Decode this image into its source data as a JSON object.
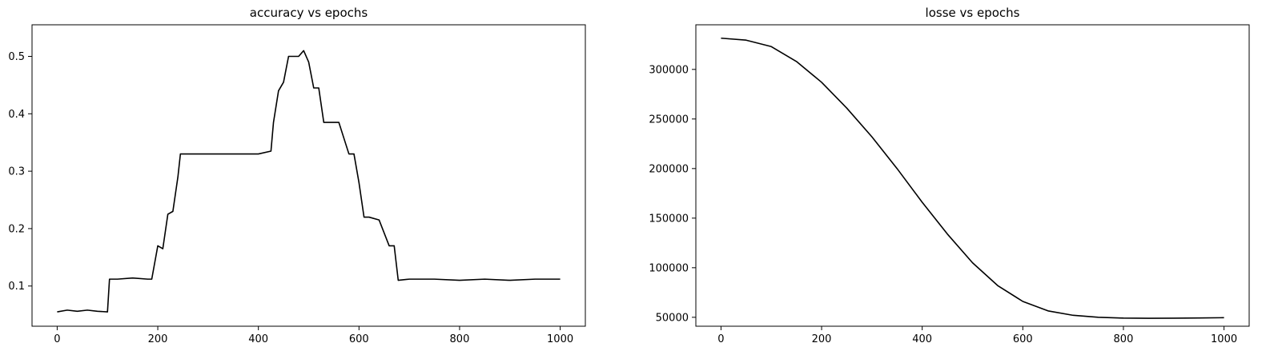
{
  "chart_data": [
    {
      "type": "line",
      "title": "accuracy vs epochs",
      "xlabel": "",
      "ylabel": "",
      "xlim": [
        -50,
        1050
      ],
      "ylim": [
        0.03,
        0.555
      ],
      "xticks": [
        0,
        200,
        400,
        600,
        800,
        1000
      ],
      "yticks": [
        0.1,
        0.2,
        0.3,
        0.4,
        0.5
      ],
      "grid": false,
      "line_color": "#000000",
      "series": [
        {
          "x": [
            0,
            20,
            40,
            60,
            80,
            100,
            104,
            120,
            150,
            180,
            188,
            200,
            210,
            220,
            230,
            240,
            245,
            260,
            300,
            350,
            400,
            425,
            430,
            440,
            450,
            460,
            480,
            490,
            500,
            510,
            520,
            530,
            540,
            560,
            580,
            590,
            600,
            610,
            620,
            640,
            660,
            670,
            678,
            700,
            750,
            800,
            850,
            900,
            950,
            1000
          ],
          "y": [
            0.055,
            0.058,
            0.056,
            0.058,
            0.056,
            0.055,
            0.112,
            0.112,
            0.114,
            0.112,
            0.112,
            0.17,
            0.165,
            0.225,
            0.23,
            0.29,
            0.33,
            0.33,
            0.33,
            0.33,
            0.33,
            0.335,
            0.385,
            0.44,
            0.455,
            0.5,
            0.5,
            0.51,
            0.49,
            0.445,
            0.445,
            0.385,
            0.385,
            0.385,
            0.33,
            0.33,
            0.28,
            0.22,
            0.22,
            0.215,
            0.17,
            0.17,
            0.11,
            0.112,
            0.112,
            0.11,
            0.112,
            0.11,
            0.112,
            0.112
          ]
        }
      ]
    },
    {
      "type": "line",
      "title": "losse vs epochs",
      "xlabel": "",
      "ylabel": "",
      "xlim": [
        -50,
        1050
      ],
      "ylim": [
        41000,
        345000
      ],
      "xticks": [
        0,
        200,
        400,
        600,
        800,
        1000
      ],
      "yticks": [
        50000,
        100000,
        150000,
        200000,
        250000,
        300000
      ],
      "grid": false,
      "line_color": "#000000",
      "series": [
        {
          "x": [
            0,
            50,
            100,
            150,
            200,
            250,
            300,
            350,
            400,
            450,
            500,
            550,
            600,
            650,
            700,
            750,
            800,
            850,
            900,
            950,
            1000
          ],
          "y": [
            331500,
            329500,
            323000,
            308000,
            287000,
            261000,
            232000,
            200000,
            166000,
            134000,
            105000,
            82000,
            66000,
            56500,
            52000,
            50000,
            49200,
            49000,
            49100,
            49300,
            49600
          ]
        }
      ]
    }
  ]
}
